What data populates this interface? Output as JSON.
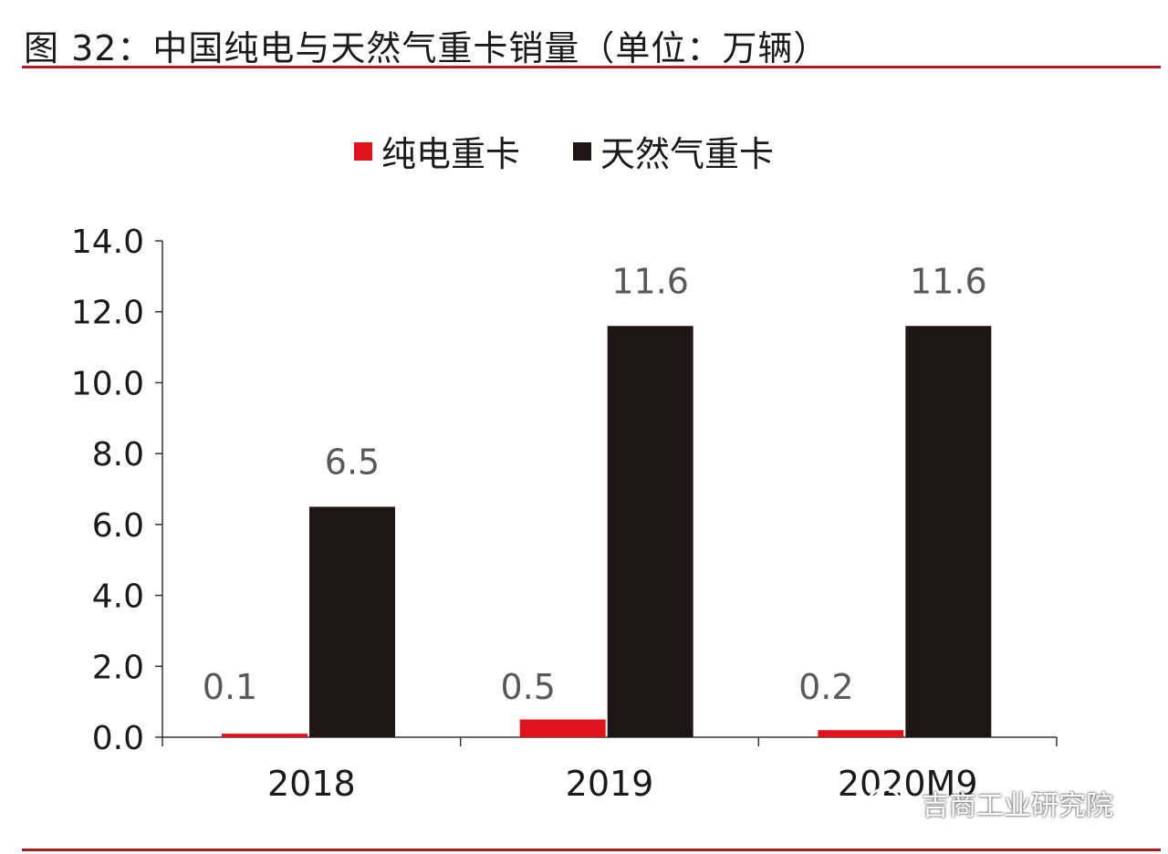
{
  "figure": {
    "title": "图 32：中国纯电与天然气重卡销量（单位：万辆）"
  },
  "watermark": {
    "icon": "wechat-icon",
    "text": "吉商工业研究院"
  },
  "colors": {
    "accent_rule": "#b5171c",
    "series_electric": "#e0121b",
    "series_gas": "#1e1515",
    "axis": "#333333",
    "label": "#595959"
  },
  "chart_data": {
    "type": "bar",
    "categories": [
      "2018",
      "2019",
      "2020M9"
    ],
    "series": [
      {
        "name": "纯电重卡",
        "values": [
          0.1,
          0.5,
          0.2
        ],
        "data_labels": [
          "0.1",
          "0.5",
          "0.2"
        ]
      },
      {
        "name": "天然气重卡",
        "values": [
          6.5,
          11.6,
          11.6
        ],
        "data_labels": [
          "6.5",
          "11.6",
          "11.6"
        ]
      }
    ],
    "ylim": [
      0,
      14
    ],
    "yticks": [
      "0.0",
      "2.0",
      "4.0",
      "6.0",
      "8.0",
      "10.0",
      "12.0",
      "14.0"
    ],
    "legend_position": "top-center",
    "grid": false
  }
}
